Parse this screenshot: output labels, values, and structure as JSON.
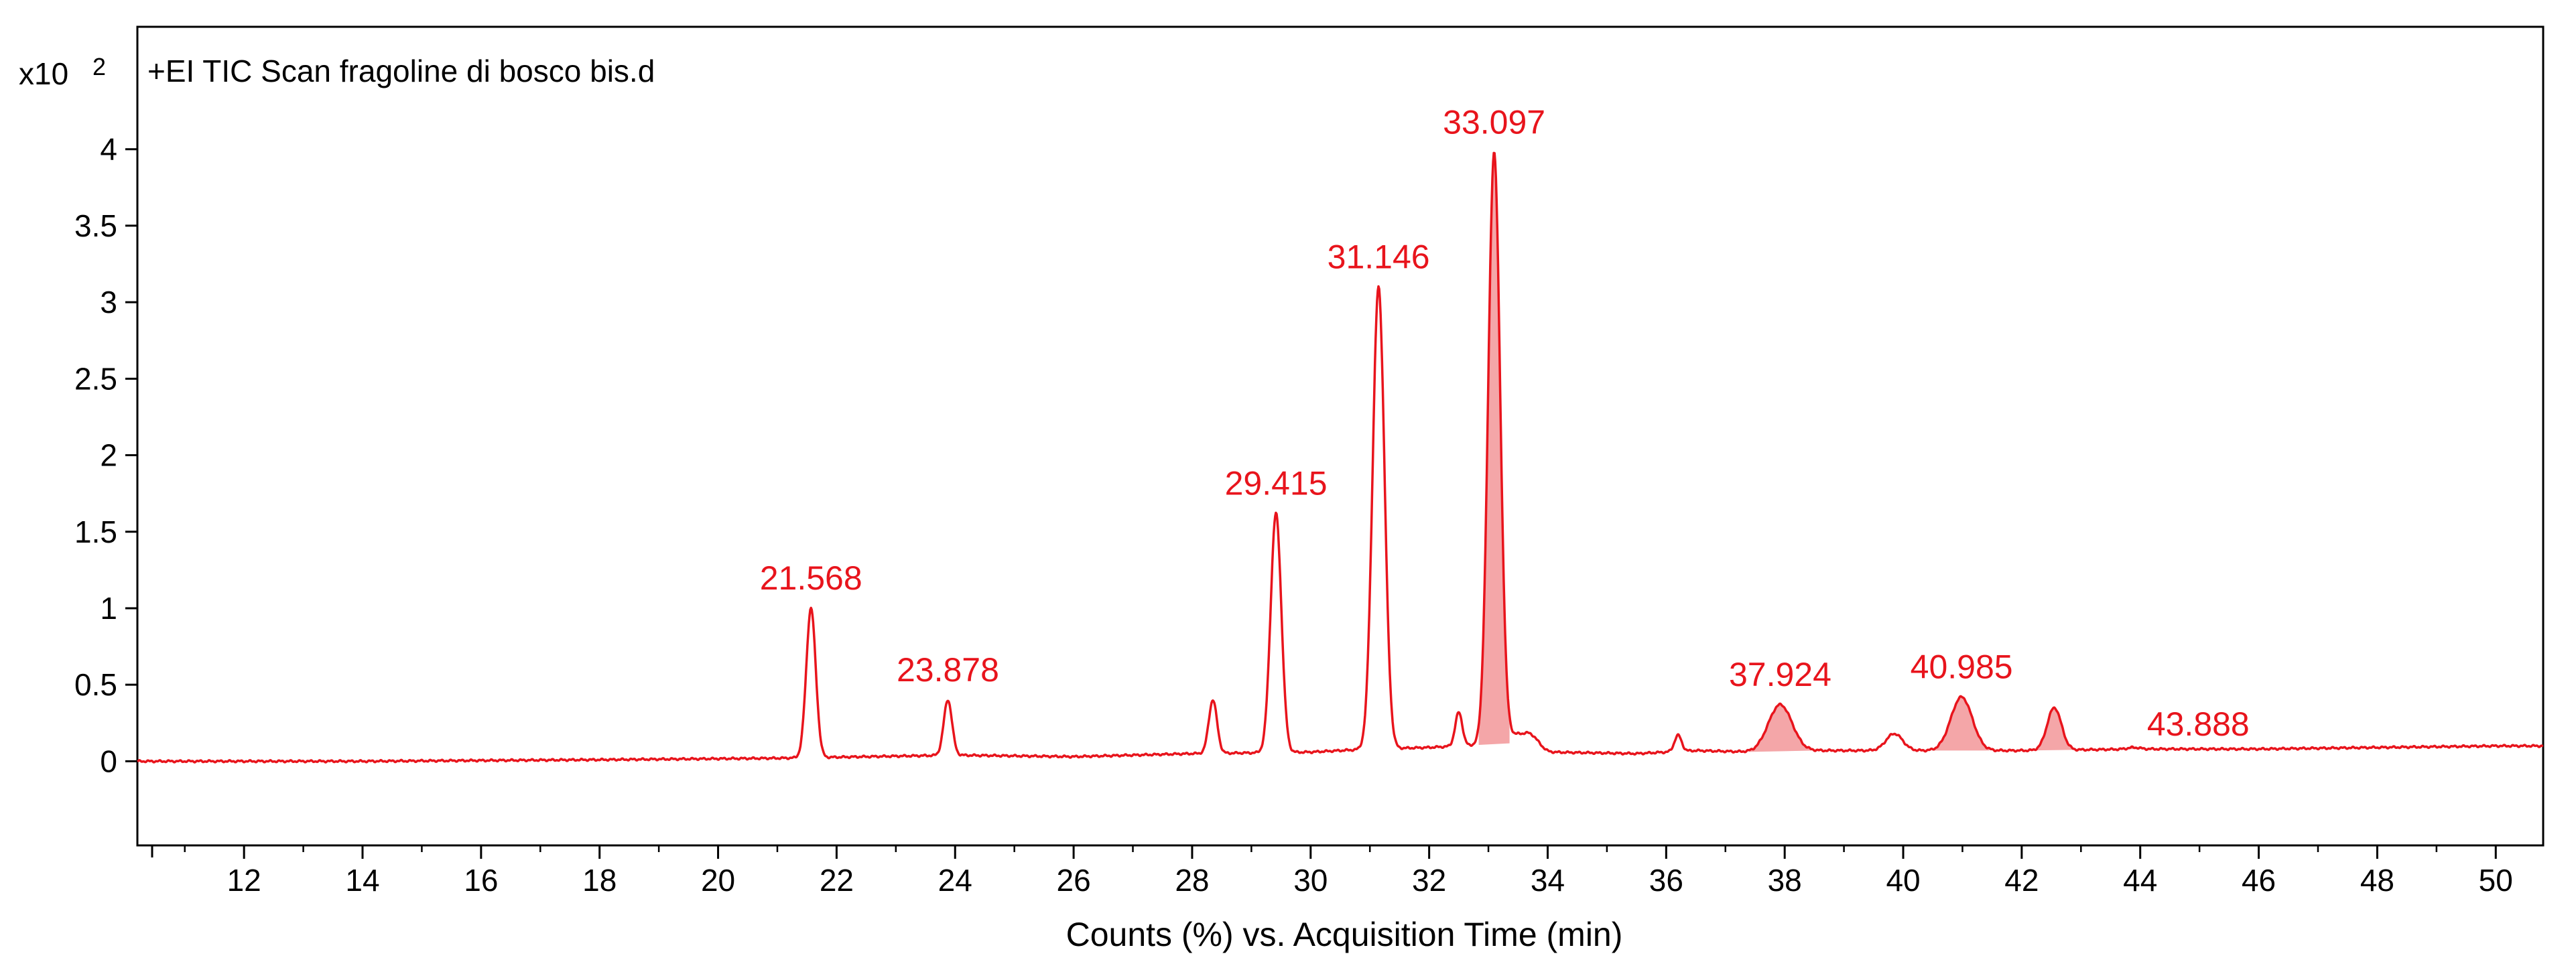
{
  "chart_data": {
    "type": "line",
    "title": "+EI TIC Scan fragoline di bosco bis.d",
    "y_multiplier_label": "x10",
    "y_multiplier_exponent": "2",
    "xlabel": "Counts (%) vs. Acquisition Time (min)",
    "ylabel": "",
    "xlim": [
      10.2,
      50.8
    ],
    "ylim": [
      -0.55,
      4.8
    ],
    "x_ticks": [
      12,
      14,
      16,
      18,
      20,
      22,
      24,
      26,
      28,
      30,
      32,
      34,
      36,
      38,
      40,
      42,
      44,
      46,
      48,
      50
    ],
    "x_tick_labels": [
      "12",
      "14",
      "16",
      "18",
      "20",
      "22",
      "24",
      "26",
      "28",
      "30",
      "32",
      "34",
      "36",
      "38",
      "40",
      "42",
      "44",
      "46",
      "48",
      "50"
    ],
    "y_ticks": [
      0,
      0.5,
      1,
      1.5,
      2,
      2.5,
      3,
      3.5,
      4
    ],
    "y_tick_labels": [
      "0",
      "0.5",
      "1",
      "1.5",
      "2",
      "2.5",
      "3",
      "3.5",
      "4"
    ],
    "grid": false,
    "legend": "none",
    "colors": {
      "trace": "#e8141c",
      "fill": "#f4a6a8",
      "label": "#e8141c",
      "axis": "#000000",
      "frame": "#000000"
    },
    "series": [
      {
        "baseline": [
          [
            10.2,
            0.0
          ],
          [
            14.0,
            0.0
          ],
          [
            18.0,
            0.01
          ],
          [
            21.0,
            0.02
          ],
          [
            24.0,
            0.04
          ],
          [
            26.0,
            0.03
          ],
          [
            28.0,
            0.05
          ],
          [
            30.0,
            0.06
          ],
          [
            31.0,
            0.08
          ],
          [
            32.0,
            0.09
          ],
          [
            33.5,
            0.12
          ],
          [
            34.0,
            0.06
          ],
          [
            35.5,
            0.05
          ],
          [
            36.5,
            0.07
          ],
          [
            37.5,
            0.06
          ],
          [
            38.5,
            0.07
          ],
          [
            40.0,
            0.07
          ],
          [
            42.0,
            0.07
          ],
          [
            44.0,
            0.08
          ],
          [
            46.0,
            0.08
          ],
          [
            48.0,
            0.09
          ],
          [
            50.0,
            0.1
          ],
          [
            50.8,
            0.1
          ]
        ],
        "peaks": [
          {
            "x": 21.568,
            "y": 1.0,
            "w": 0.08
          },
          {
            "x": 23.878,
            "y": 0.4,
            "w": 0.07
          },
          {
            "x": 28.35,
            "y": 0.4,
            "w": 0.07
          },
          {
            "x": 29.415,
            "y": 1.62,
            "w": 0.09
          },
          {
            "x": 31.146,
            "y": 3.1,
            "w": 0.1
          },
          {
            "x": 32.5,
            "y": 0.32,
            "w": 0.06
          },
          {
            "x": 33.097,
            "y": 3.98,
            "w": 0.1
          },
          {
            "x": 33.4,
            "y": 0.16,
            "w": 0.12
          },
          {
            "x": 33.7,
            "y": 0.18,
            "w": 0.14
          },
          {
            "x": 36.2,
            "y": 0.17,
            "w": 0.06
          },
          {
            "x": 37.924,
            "y": 0.37,
            "w": 0.2
          },
          {
            "x": 39.85,
            "y": 0.18,
            "w": 0.14
          },
          {
            "x": 40.985,
            "y": 0.42,
            "w": 0.18
          },
          {
            "x": 42.55,
            "y": 0.35,
            "w": 0.12
          },
          {
            "x": 43.888,
            "y": 0.09,
            "w": 0.1
          }
        ],
        "filled_peaks": [
          33.097,
          37.924,
          40.985,
          42.55,
          43.888
        ]
      }
    ],
    "annotations": [
      {
        "text": "21.568",
        "x": 21.568,
        "y": 1.0
      },
      {
        "text": "23.878",
        "x": 23.878,
        "y": 0.4
      },
      {
        "text": "29.415",
        "x": 29.415,
        "y": 1.62
      },
      {
        "text": "31.146",
        "x": 31.146,
        "y": 3.1
      },
      {
        "text": "33.097",
        "x": 33.097,
        "y": 3.98
      },
      {
        "text": "37.924",
        "x": 37.924,
        "y": 0.37
      },
      {
        "text": "40.985",
        "x": 40.985,
        "y": 0.42
      },
      {
        "text": "43.888",
        "x": 43.888,
        "y": 0.09
      }
    ]
  }
}
